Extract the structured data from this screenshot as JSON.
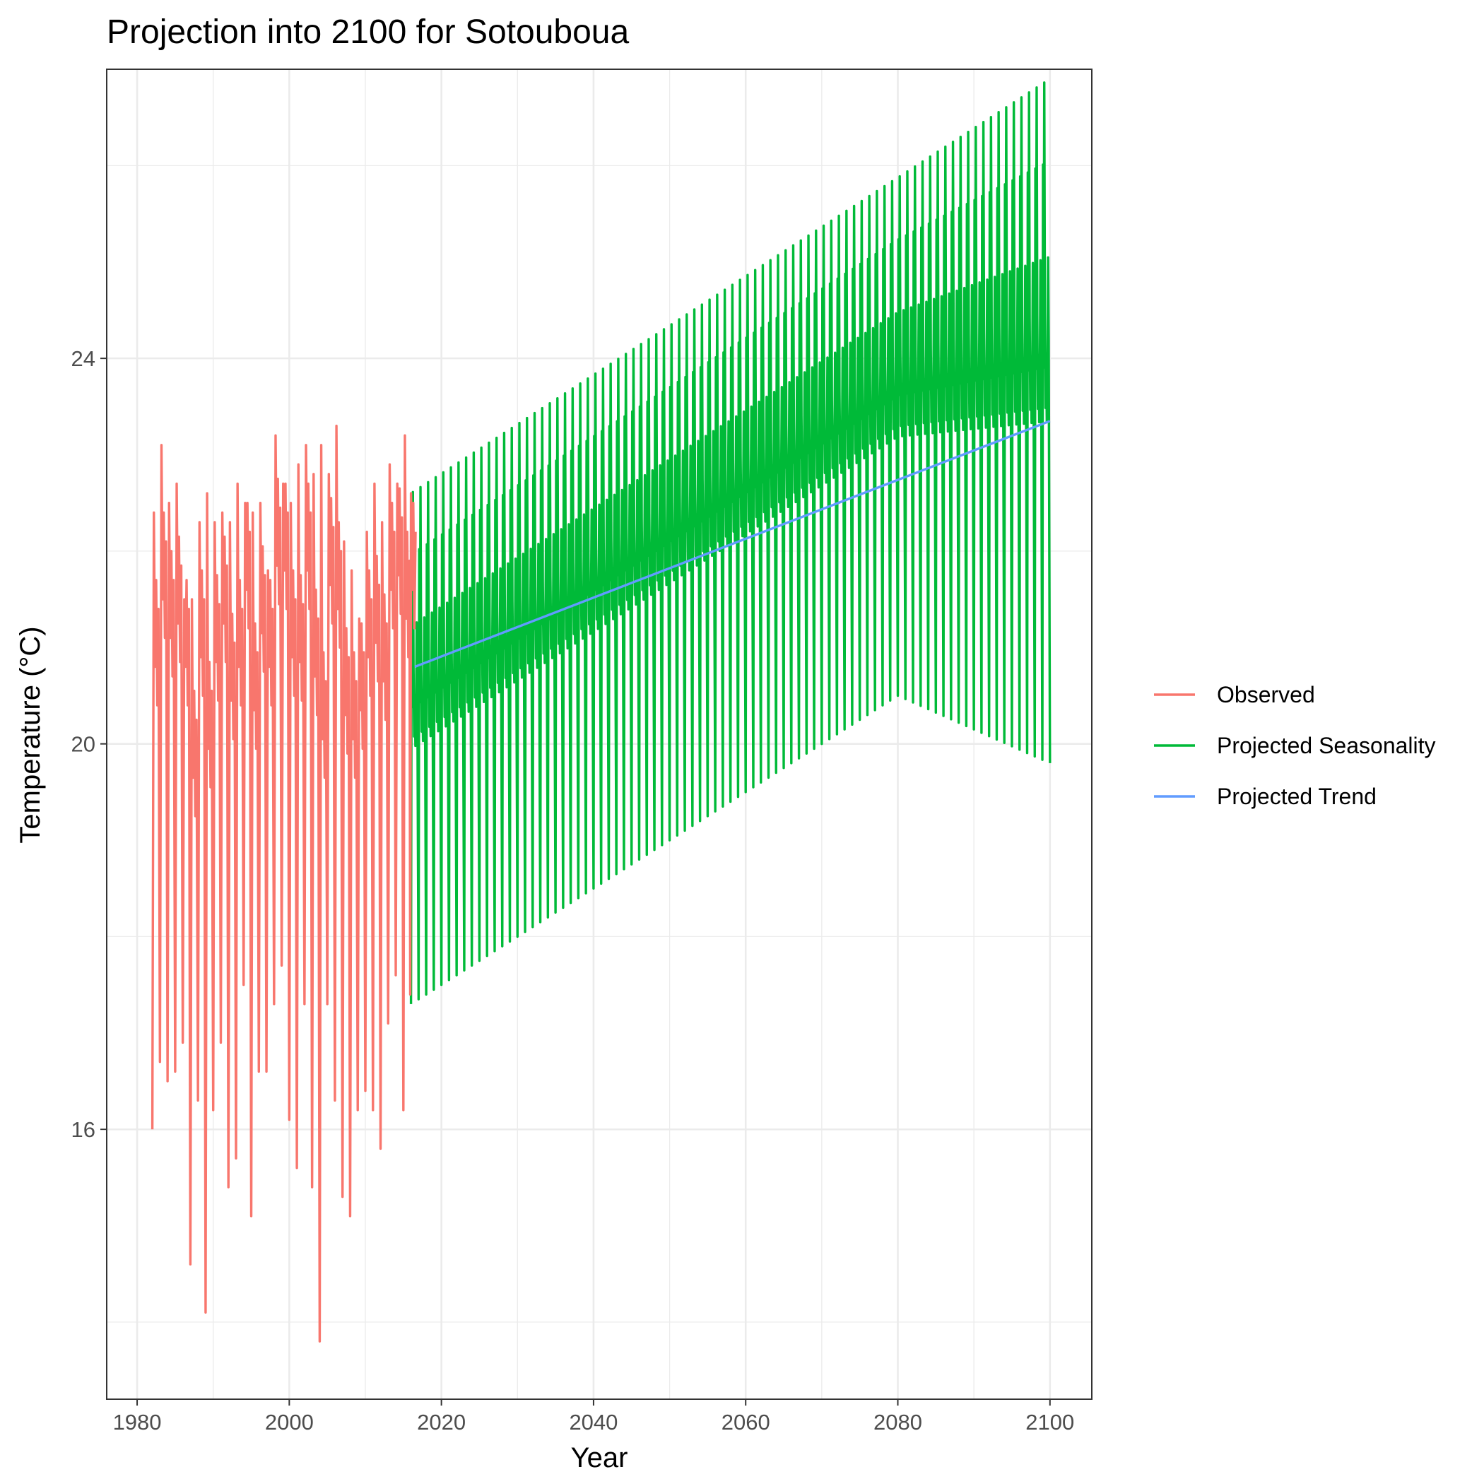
{
  "chart_data": {
    "type": "line",
    "title": "Projection into 2100 for Sotouboua",
    "xlabel": "Year",
    "ylabel": "Temperature (°C)",
    "xlim": [
      1976,
      2105.5
    ],
    "ylim": [
      13.2,
      27.0
    ],
    "x_ticks": [
      1980,
      2000,
      2020,
      2040,
      2060,
      2080,
      2100
    ],
    "x_tick_labels": [
      "1980",
      "2000",
      "2020",
      "2040",
      "2060",
      "2080",
      "2100"
    ],
    "x_minor_ticks": [
      1990,
      2010,
      2030,
      2050,
      2070,
      2090
    ],
    "y_ticks": [
      16,
      20,
      24
    ],
    "y_tick_labels": [
      "16",
      "20",
      "24"
    ],
    "y_minor_ticks": [
      14,
      18,
      22,
      26
    ],
    "grid": true,
    "legend_position": "right",
    "legend": [
      "Observed",
      "Projected Seasonality",
      "Projected Trend"
    ],
    "series": [
      {
        "name": "Observed",
        "color": "#F8766D",
        "annual_peaks": [
          [
            1982.2,
            22.4
          ],
          [
            1983.2,
            23.1
          ],
          [
            1984.2,
            22.5
          ],
          [
            1985.2,
            22.7
          ],
          [
            1986.2,
            21.5
          ],
          [
            1987.2,
            21.5
          ],
          [
            1988.2,
            22.3
          ],
          [
            1989.2,
            22.6
          ],
          [
            1990.2,
            22.3
          ],
          [
            1991.2,
            22.4
          ],
          [
            1992.2,
            22.3
          ],
          [
            1993.2,
            22.7
          ],
          [
            1994.2,
            22.5
          ],
          [
            1995.2,
            22.4
          ],
          [
            1996.2,
            22.5
          ],
          [
            1997.2,
            21.8
          ],
          [
            1998.2,
            23.2
          ],
          [
            1999.2,
            22.7
          ],
          [
            2000.2,
            22.5
          ],
          [
            2001.2,
            22.9
          ],
          [
            2002.2,
            23.1
          ],
          [
            2003.2,
            22.8
          ],
          [
            2004.2,
            23.1
          ],
          [
            2005.2,
            22.8
          ],
          [
            2006.2,
            23.3
          ],
          [
            2007.2,
            22.1
          ],
          [
            2008.2,
            21.8
          ],
          [
            2009.2,
            21.3
          ],
          [
            2010.2,
            22.2
          ],
          [
            2011.2,
            22.7
          ],
          [
            2012.2,
            22.3
          ],
          [
            2013.2,
            22.9
          ],
          [
            2014.2,
            22.7
          ],
          [
            2015.2,
            23.2
          ],
          [
            2016.0,
            22.6
          ]
        ],
        "annual_troughs": [
          [
            1982.0,
            16.0
          ],
          [
            1983.0,
            16.7
          ],
          [
            1984.0,
            16.5
          ],
          [
            1985.0,
            16.6
          ],
          [
            1986.0,
            16.9
          ],
          [
            1987.0,
            14.6
          ],
          [
            1988.0,
            16.3
          ],
          [
            1989.0,
            14.1
          ],
          [
            1990.0,
            16.2
          ],
          [
            1991.0,
            16.9
          ],
          [
            1992.0,
            15.4
          ],
          [
            1993.0,
            15.7
          ],
          [
            1994.0,
            17.5
          ],
          [
            1995.0,
            15.1
          ],
          [
            1996.0,
            16.6
          ],
          [
            1997.0,
            16.6
          ],
          [
            1998.0,
            17.3
          ],
          [
            1999.0,
            17.7
          ],
          [
            2000.0,
            16.1
          ],
          [
            2001.0,
            15.6
          ],
          [
            2002.0,
            17.3
          ],
          [
            2003.0,
            15.4
          ],
          [
            2004.0,
            13.8
          ],
          [
            2005.0,
            17.3
          ],
          [
            2006.0,
            16.3
          ],
          [
            2007.0,
            15.3
          ],
          [
            2008.0,
            15.1
          ],
          [
            2009.0,
            16.2
          ],
          [
            2010.0,
            16.4
          ],
          [
            2011.0,
            16.2
          ],
          [
            2012.0,
            15.8
          ],
          [
            2013.0,
            17.1
          ],
          [
            2014.0,
            17.6
          ],
          [
            2015.0,
            16.2
          ],
          [
            2015.9,
            17.4
          ]
        ],
        "x_range": [
          1982,
          2016
        ]
      },
      {
        "name": "Projected Seasonality",
        "color": "#00BA38",
        "x_range": [
          2016,
          2100
        ],
        "upper_envelope_start": 22.6,
        "upper_envelope_end": 26.9,
        "lower_envelope_start": 17.3,
        "lower_envelope_end": 19.8,
        "lower_envelope_mid": [
          2080,
          20.5
        ]
      },
      {
        "name": "Projected Trend",
        "color": "#619CFF",
        "x": [
          2016.5,
          2100
        ],
        "y": [
          20.8,
          23.35
        ]
      }
    ]
  }
}
